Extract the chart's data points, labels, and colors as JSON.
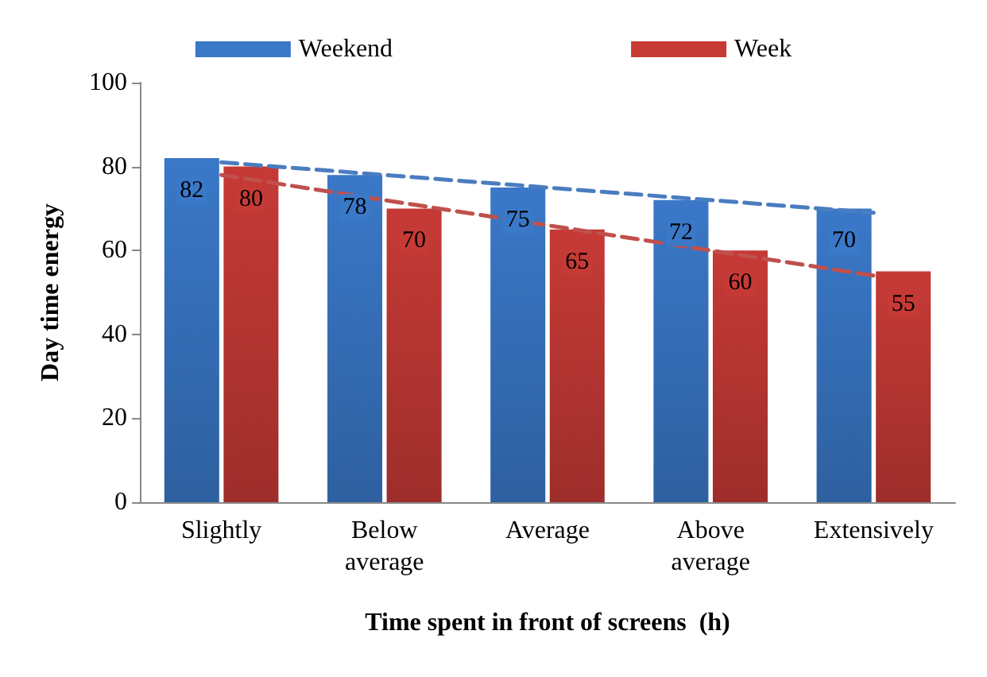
{
  "chart_data": {
    "type": "bar",
    "xlabel": "Time spent in front of screens  (h)",
    "ylabel": "Day time energy",
    "categories": [
      "Slightly",
      "Below\naverage",
      "Average",
      "Above\naverage",
      "Extensively"
    ],
    "series": [
      {
        "name": "Weekend",
        "color": "#3a78c8",
        "values": [
          82,
          78,
          75,
          72,
          70
        ],
        "value_labels": [
          "82",
          "78",
          "75",
          "72",
          "70"
        ]
      },
      {
        "name": "Week",
        "color": "#c63a36",
        "values": [
          80,
          70,
          65,
          60,
          55
        ],
        "value_labels": [
          "80",
          "70",
          "65",
          "60",
          "55"
        ]
      },
      {
        "type": "line",
        "color": "#4a7cc0",
        "values": [
          81,
          78,
          75,
          72,
          69
        ],
        "line_style": "dashed",
        "marker": "none"
      },
      {
        "type": "line",
        "color": "#c0504d",
        "values": [
          78,
          72,
          66,
          60,
          54
        ],
        "line_style": "dashed",
        "marker": "none"
      }
    ],
    "ylim": [
      0,
      100
    ],
    "yticks": [
      0,
      20,
      40,
      60,
      80,
      100
    ],
    "grid": false,
    "legend": "top"
  }
}
